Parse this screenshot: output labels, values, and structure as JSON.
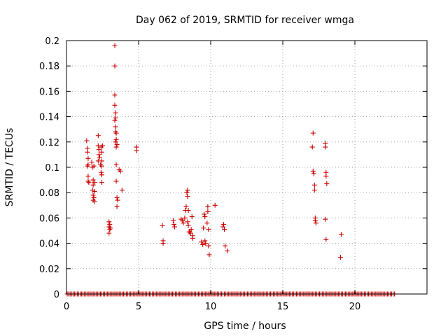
{
  "chart_data": {
    "type": "scatter",
    "title": "Day 062 of 2019, SRMTID for receiver wmga",
    "xlabel": "GPS time / hours",
    "ylabel": "SRMTID / TECUs",
    "xlim": [
      0,
      25
    ],
    "ylim": [
      0,
      0.2
    ],
    "x_ticks": [
      0,
      5,
      10,
      15,
      20
    ],
    "x_tick_labels": [
      "0",
      "5",
      "10",
      "15",
      "20"
    ],
    "y_ticks": [
      0,
      0.02,
      0.04,
      0.06,
      0.08,
      0.1,
      0.12,
      0.14,
      0.16,
      0.18,
      0.2
    ],
    "y_tick_labels": [
      "0",
      "0.02",
      "0.04",
      "0.06",
      "0.08",
      "0.1",
      "0.12",
      "0.14",
      "0.16",
      "0.18",
      "0.2"
    ],
    "grid": true,
    "marker": "+",
    "marker_color": "#cc0000",
    "baseline_zero_range": [
      0.05,
      22.75
    ],
    "baseline_zero_step": 0.1,
    "series": [
      {
        "name": "SRMTID",
        "points": [
          [
            1.4,
            0.121
          ],
          [
            1.45,
            0.115
          ],
          [
            1.45,
            0.112
          ],
          [
            1.5,
            0.107
          ],
          [
            1.5,
            0.102
          ],
          [
            1.45,
            0.101
          ],
          [
            1.5,
            0.093
          ],
          [
            1.5,
            0.089
          ],
          [
            1.55,
            0.088
          ],
          [
            1.75,
            0.104
          ],
          [
            1.8,
            0.1
          ],
          [
            1.85,
            0.09
          ],
          [
            1.85,
            0.086
          ],
          [
            1.8,
            0.082
          ],
          [
            1.85,
            0.078
          ],
          [
            1.9,
            0.076
          ],
          [
            1.85,
            0.074
          ],
          [
            1.95,
            0.073
          ],
          [
            1.95,
            0.081
          ],
          [
            1.95,
            0.088
          ],
          [
            1.9,
            0.101
          ],
          [
            2.2,
            0.125
          ],
          [
            2.2,
            0.117
          ],
          [
            2.25,
            0.114
          ],
          [
            2.25,
            0.11
          ],
          [
            2.3,
            0.108
          ],
          [
            2.2,
            0.105
          ],
          [
            2.35,
            0.102
          ],
          [
            2.4,
            0.116
          ],
          [
            2.45,
            0.112
          ],
          [
            2.45,
            0.105
          ],
          [
            2.45,
            0.101
          ],
          [
            2.4,
            0.096
          ],
          [
            2.45,
            0.094
          ],
          [
            2.45,
            0.088
          ],
          [
            2.5,
            0.117
          ],
          [
            2.95,
            0.057
          ],
          [
            2.95,
            0.053
          ],
          [
            3.0,
            0.051
          ],
          [
            2.95,
            0.048
          ],
          [
            3.0,
            0.055
          ],
          [
            3.05,
            0.052
          ],
          [
            3.35,
            0.196
          ],
          [
            3.35,
            0.18
          ],
          [
            3.35,
            0.157
          ],
          [
            3.35,
            0.149
          ],
          [
            3.4,
            0.143
          ],
          [
            3.4,
            0.139
          ],
          [
            3.35,
            0.137
          ],
          [
            3.4,
            0.132
          ],
          [
            3.4,
            0.128
          ],
          [
            3.45,
            0.127
          ],
          [
            3.45,
            0.122
          ],
          [
            3.5,
            0.118
          ],
          [
            3.45,
            0.116
          ],
          [
            3.4,
            0.12
          ],
          [
            3.45,
            0.102
          ],
          [
            3.45,
            0.089
          ],
          [
            3.5,
            0.076
          ],
          [
            3.55,
            0.074
          ],
          [
            3.5,
            0.069
          ],
          [
            3.65,
            0.098
          ],
          [
            3.75,
            0.097
          ],
          [
            3.85,
            0.082
          ],
          [
            4.85,
            0.116
          ],
          [
            4.85,
            0.113
          ],
          [
            6.65,
            0.054
          ],
          [
            6.7,
            0.042
          ],
          [
            6.7,
            0.04
          ],
          [
            7.4,
            0.058
          ],
          [
            7.45,
            0.055
          ],
          [
            7.5,
            0.053
          ],
          [
            7.95,
            0.059
          ],
          [
            8.05,
            0.058
          ],
          [
            8.1,
            0.056
          ],
          [
            8.2,
            0.06
          ],
          [
            8.25,
            0.066
          ],
          [
            8.3,
            0.069
          ],
          [
            8.35,
            0.08
          ],
          [
            8.4,
            0.077
          ],
          [
            8.4,
            0.082
          ],
          [
            8.45,
            0.066
          ],
          [
            8.4,
            0.057
          ],
          [
            8.45,
            0.054
          ],
          [
            8.5,
            0.049
          ],
          [
            8.55,
            0.049
          ],
          [
            8.6,
            0.048
          ],
          [
            8.65,
            0.051
          ],
          [
            8.7,
            0.061
          ],
          [
            8.75,
            0.046
          ],
          [
            8.75,
            0.044
          ],
          [
            9.35,
            0.041
          ],
          [
            9.45,
            0.039
          ],
          [
            9.5,
            0.052
          ],
          [
            9.55,
            0.063
          ],
          [
            9.6,
            0.042
          ],
          [
            9.65,
            0.04
          ],
          [
            9.75,
            0.056
          ],
          [
            9.8,
            0.069
          ],
          [
            9.8,
            0.065
          ],
          [
            9.85,
            0.051
          ],
          [
            9.85,
            0.038
          ],
          [
            9.9,
            0.031
          ],
          [
            9.6,
            0.061
          ],
          [
            10.3,
            0.07
          ],
          [
            10.85,
            0.053
          ],
          [
            10.9,
            0.055
          ],
          [
            10.95,
            0.051
          ],
          [
            11.0,
            0.038
          ],
          [
            11.15,
            0.034
          ],
          [
            17.05,
            0.116
          ],
          [
            17.1,
            0.127
          ],
          [
            17.1,
            0.097
          ],
          [
            17.15,
            0.095
          ],
          [
            17.2,
            0.086
          ],
          [
            17.2,
            0.082
          ],
          [
            17.25,
            0.06
          ],
          [
            17.25,
            0.058
          ],
          [
            17.3,
            0.056
          ],
          [
            17.95,
            0.119
          ],
          [
            17.95,
            0.116
          ],
          [
            18.0,
            0.096
          ],
          [
            18.0,
            0.093
          ],
          [
            18.05,
            0.087
          ],
          [
            17.95,
            0.059
          ],
          [
            18.0,
            0.043
          ],
          [
            19.05,
            0.047
          ],
          [
            19.0,
            0.029
          ]
        ]
      }
    ]
  }
}
